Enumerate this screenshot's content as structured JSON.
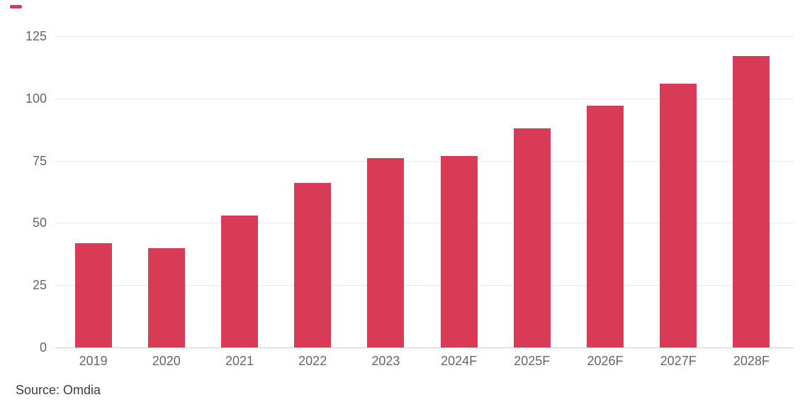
{
  "chart_data": {
    "type": "bar",
    "categories": [
      "2019",
      "2020",
      "2021",
      "2022",
      "2023",
      "2024F",
      "2025F",
      "2026F",
      "2027F",
      "2028F"
    ],
    "values": [
      42,
      40,
      53,
      66,
      76,
      77,
      88,
      97,
      106,
      117
    ],
    "ylim": [
      0,
      125
    ],
    "yticks": [
      0,
      25,
      50,
      75,
      100,
      125
    ],
    "grid": true,
    "legend_position": "none",
    "bar_color": "#d93a56",
    "gridline_color": "#e7e7e7",
    "axis_line_color": "#cccccc",
    "tick_label_color": "#666666"
  },
  "footer": {
    "source": "Source: Omdia"
  }
}
